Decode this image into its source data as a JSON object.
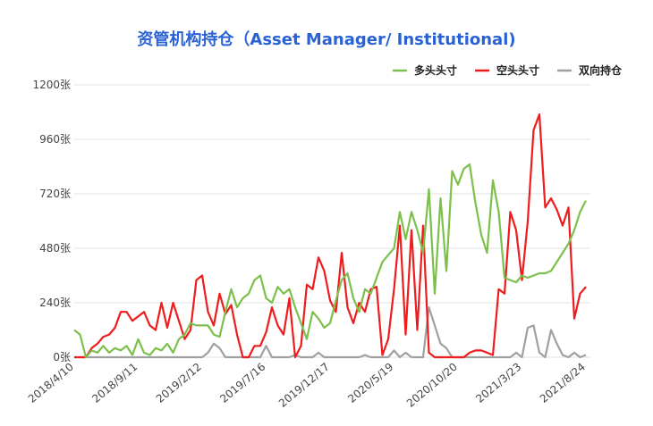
{
  "chart_data": {
    "type": "line",
    "title": "资管机构持仓（Asset Manager/ Institutional)",
    "legend": "top-right",
    "grid": true,
    "categories": [
      "2018/4/10",
      null,
      null,
      null,
      null,
      null,
      null,
      null,
      null,
      null,
      null,
      "2018/9/11",
      null,
      null,
      null,
      null,
      null,
      null,
      null,
      null,
      null,
      null,
      "2019/2/12",
      null,
      null,
      null,
      null,
      null,
      null,
      null,
      null,
      null,
      null,
      "2019/7/16",
      null,
      null,
      null,
      null,
      null,
      null,
      null,
      null,
      null,
      null,
      "2019/12/17",
      null,
      null,
      null,
      null,
      null,
      null,
      null,
      null,
      null,
      null,
      "2020/5/19",
      null,
      null,
      null,
      null,
      null,
      null,
      null,
      null,
      null,
      null,
      "2020/10/20",
      null,
      null,
      null,
      null,
      null,
      null,
      null,
      null,
      null,
      null,
      "2021/3/23",
      null,
      null,
      null,
      null,
      null,
      null,
      null,
      null,
      null,
      null,
      "2021/8/24"
    ],
    "ylim": [
      0,
      1200
    ],
    "yticks": [
      {
        "value": 0,
        "label": "0张"
      },
      {
        "value": 240,
        "label": "240张"
      },
      {
        "value": 480,
        "label": "480张"
      },
      {
        "value": 720,
        "label": "720张"
      },
      {
        "value": 960,
        "label": "960张"
      },
      {
        "value": 1200,
        "label": "1200张"
      }
    ],
    "series": [
      {
        "name": "多头头寸",
        "color": "#7cc04b",
        "values": [
          120,
          100,
          0,
          30,
          20,
          50,
          20,
          40,
          30,
          50,
          10,
          80,
          20,
          10,
          40,
          30,
          60,
          20,
          80,
          100,
          150,
          140,
          140,
          140,
          100,
          90,
          200,
          300,
          220,
          260,
          280,
          340,
          360,
          260,
          240,
          310,
          280,
          300,
          220,
          150,
          80,
          200,
          170,
          130,
          150,
          250,
          340,
          370,
          260,
          200,
          300,
          280,
          350,
          420,
          450,
          480,
          640,
          520,
          640,
          560,
          460,
          740,
          280,
          700,
          380,
          820,
          760,
          830,
          850,
          680,
          540,
          460,
          780,
          640,
          350,
          340,
          330,
          360,
          350,
          360,
          370,
          370,
          380,
          420,
          460,
          500,
          560,
          640,
          690
        ]
      },
      {
        "name": "空头头寸",
        "color": "#ee1c1c",
        "values": [
          0,
          0,
          0,
          40,
          60,
          90,
          100,
          130,
          200,
          200,
          160,
          180,
          200,
          140,
          120,
          240,
          130,
          240,
          160,
          80,
          120,
          340,
          360,
          200,
          140,
          280,
          190,
          230,
          100,
          0,
          0,
          50,
          50,
          110,
          220,
          140,
          100,
          260,
          0,
          50,
          320,
          300,
          440,
          380,
          250,
          200,
          460,
          220,
          150,
          240,
          200,
          300,
          310,
          10,
          80,
          300,
          580,
          100,
          560,
          120,
          580,
          20,
          0,
          0,
          0,
          0,
          0,
          0,
          20,
          30,
          30,
          20,
          10,
          300,
          280,
          640,
          560,
          340,
          600,
          1000,
          1070,
          660,
          700,
          650,
          580,
          660,
          170,
          280,
          310
        ]
      },
      {
        "name": "双向持仓",
        "color": "#a0a0a0",
        "values": [
          0,
          0,
          0,
          0,
          0,
          0,
          0,
          0,
          0,
          0,
          0,
          0,
          0,
          0,
          0,
          0,
          0,
          0,
          0,
          0,
          0,
          0,
          0,
          20,
          60,
          40,
          0,
          0,
          0,
          0,
          0,
          0,
          0,
          50,
          0,
          0,
          0,
          0,
          10,
          0,
          0,
          0,
          20,
          0,
          0,
          0,
          0,
          0,
          0,
          0,
          10,
          0,
          0,
          0,
          0,
          30,
          0,
          20,
          0,
          0,
          0,
          220,
          140,
          60,
          40,
          0,
          0,
          0,
          0,
          0,
          0,
          0,
          0,
          0,
          0,
          0,
          20,
          0,
          130,
          140,
          20,
          0,
          120,
          60,
          10,
          0,
          20,
          0,
          10
        ]
      }
    ]
  }
}
